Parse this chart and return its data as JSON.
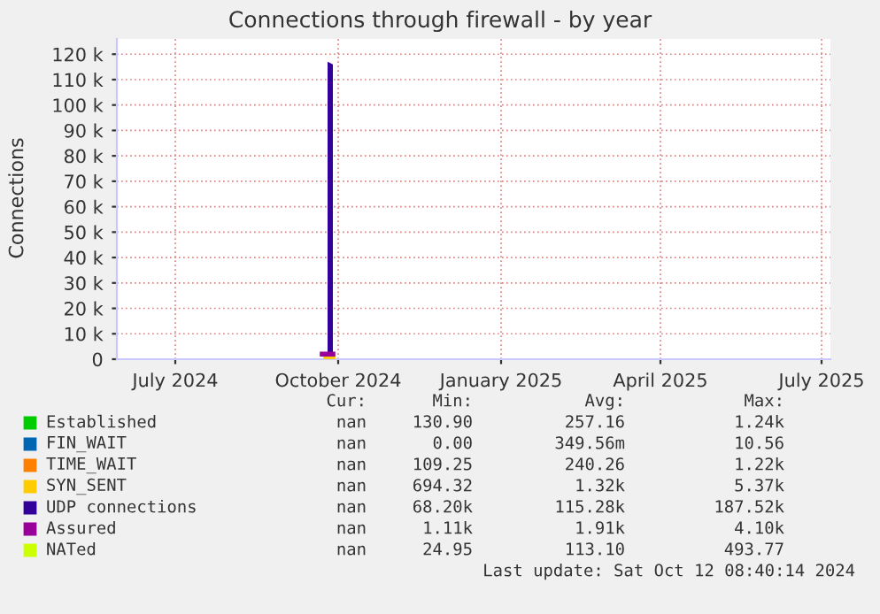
{
  "chart_data": {
    "type": "line",
    "title": "Connections through firewall - by year",
    "ylabel": "Connections",
    "xlim": [
      "2024-05-29",
      "2025-07-06"
    ],
    "ylim": [
      0,
      126000
    ],
    "xticks": [
      {
        "value": "2024-07-01",
        "label": "July 2024"
      },
      {
        "value": "2024-10-01",
        "label": "October 2024"
      },
      {
        "value": "2025-01-01",
        "label": "January 2025"
      },
      {
        "value": "2025-04-01",
        "label": "April 2025"
      },
      {
        "value": "2025-07-01",
        "label": "July 2025"
      }
    ],
    "yticks": [
      0,
      {
        "value": 10000,
        "label": "10 k"
      },
      {
        "value": 20000,
        "label": "20 k"
      },
      {
        "value": 30000,
        "label": "30 k"
      },
      {
        "value": 40000,
        "label": "40 k"
      },
      {
        "value": 50000,
        "label": "50 k"
      },
      {
        "value": 60000,
        "label": "60 k"
      },
      {
        "value": 70000,
        "label": "70 k"
      },
      {
        "value": 80000,
        "label": "80 k"
      },
      {
        "value": 90000,
        "label": "90 k"
      },
      {
        "value": 100000,
        "label": "100 k"
      },
      {
        "value": 110000,
        "label": "110 k"
      },
      {
        "value": 120000,
        "label": "120 k"
      }
    ],
    "grid": true,
    "legend": "bottom",
    "series": [
      {
        "name": "Established",
        "color": "#00cc00"
      },
      {
        "name": "FIN_WAIT",
        "color": "#0066b3"
      },
      {
        "name": "TIME_WAIT",
        "color": "#ff8000"
      },
      {
        "name": "SYN_SENT",
        "color": "#ffcc00",
        "x": [
          "2024-09-24",
          "2024-09-28"
        ],
        "values": [
          1000,
          1000
        ]
      },
      {
        "name": "UDP connections",
        "color": "#330099",
        "type": "area",
        "x": [
          "2024-09-25",
          "2024-09-28"
        ],
        "values": [
          117000,
          116000
        ]
      },
      {
        "name": "Assured",
        "color": "#990099",
        "x": [
          "2024-09-22",
          "2024-09-28"
        ],
        "values": [
          2000,
          2000
        ]
      },
      {
        "name": "NATed",
        "color": "#ccff00"
      }
    ],
    "annotations": [
      "Cur:",
      "Min:",
      "Avg:",
      "Max:",
      "nan",
      "130.90",
      "257.16",
      "1.24k",
      "nan",
      "0.00",
      "349.56m",
      "10.56",
      "nan",
      "109.25",
      "240.26",
      "1.22k",
      "nan",
      "694.32",
      "1.32k",
      "5.37k",
      "nan",
      "68.20k",
      "115.28k",
      "187.52k",
      "nan",
      "1.11k",
      "1.91k",
      "4.10k",
      "nan",
      "24.95",
      "113.10",
      "493.77",
      "Last update: Sat Oct 12 08:40:14 2024"
    ]
  }
}
